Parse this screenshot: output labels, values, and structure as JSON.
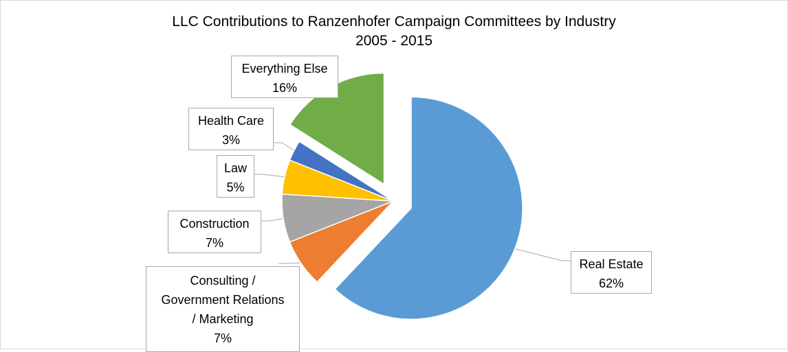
{
  "chart_data": {
    "type": "pie",
    "title": "LLC Contributions to Ranzenhofer Campaign Committees by Industry",
    "subtitle": "2005 - 2015",
    "legend": "none",
    "slices": [
      {
        "label": "Real Estate",
        "value": 62,
        "value_label": "62%",
        "color": "#5b9bd5",
        "exploded": true
      },
      {
        "label": "Consulting / Government Relations / Marketing",
        "label_lines": [
          "Consulting /",
          "Government Relations",
          "/ Marketing"
        ],
        "value": 7,
        "value_label": "7%",
        "color": "#ed7d31"
      },
      {
        "label": "Construction",
        "value": 7,
        "value_label": "7%",
        "color": "#a5a5a5"
      },
      {
        "label": "Law",
        "value": 5,
        "value_label": "5%",
        "color": "#ffc000"
      },
      {
        "label": "Health Care",
        "value": 3,
        "value_label": "3%",
        "color": "#4472c4"
      },
      {
        "label": "Everything Else",
        "value": 16,
        "value_label": "16%",
        "color": "#70ad47",
        "exploded": true
      }
    ]
  }
}
